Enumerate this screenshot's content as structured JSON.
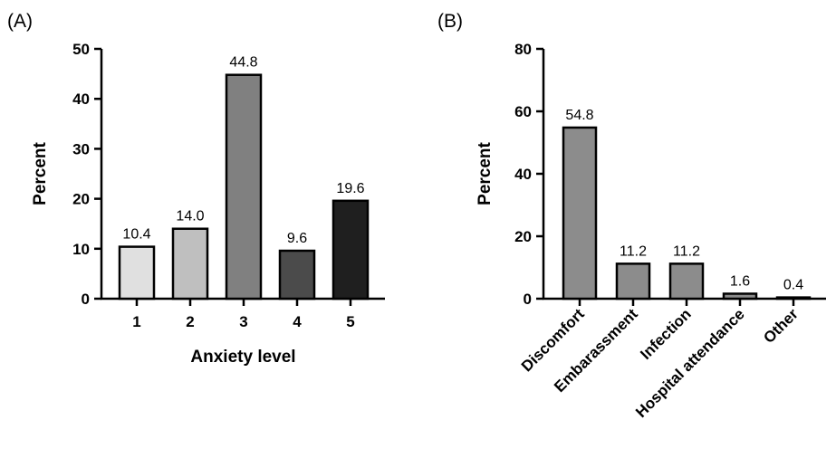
{
  "chart_data": [
    {
      "panel": "(A)",
      "type": "bar",
      "xlabel": "Anxiety level",
      "ylabel": "Percent",
      "ylim": [
        0,
        50
      ],
      "yticks": [
        0,
        10,
        20,
        30,
        40,
        50
      ],
      "categories": [
        "1",
        "2",
        "3",
        "4",
        "5"
      ],
      "values": [
        10.4,
        14.0,
        44.8,
        9.6,
        19.6
      ],
      "value_labels": [
        "10.4",
        "14.0",
        "44.8",
        "9.6",
        "19.6"
      ],
      "colors": [
        "#e0e0e0",
        "#bfbfbf",
        "#808080",
        "#4b4b4b",
        "#1f1f1f"
      ],
      "grid": false
    },
    {
      "panel": "(B)",
      "type": "bar",
      "xlabel": "",
      "ylabel": "Percent",
      "ylim": [
        0,
        80
      ],
      "yticks": [
        0,
        20,
        40,
        60,
        80
      ],
      "categories": [
        "Discomfort",
        "Embarassment",
        "Infection",
        "Hospital attendance",
        "Other"
      ],
      "values": [
        54.8,
        11.2,
        11.2,
        1.6,
        0.4
      ],
      "value_labels": [
        "54.8",
        "11.2",
        "11.2",
        "1.6",
        "0.4"
      ],
      "colors": [
        "#8c8c8c",
        "#8c8c8c",
        "#8c8c8c",
        "#8c8c8c",
        "#8c8c8c"
      ],
      "grid": false
    }
  ]
}
